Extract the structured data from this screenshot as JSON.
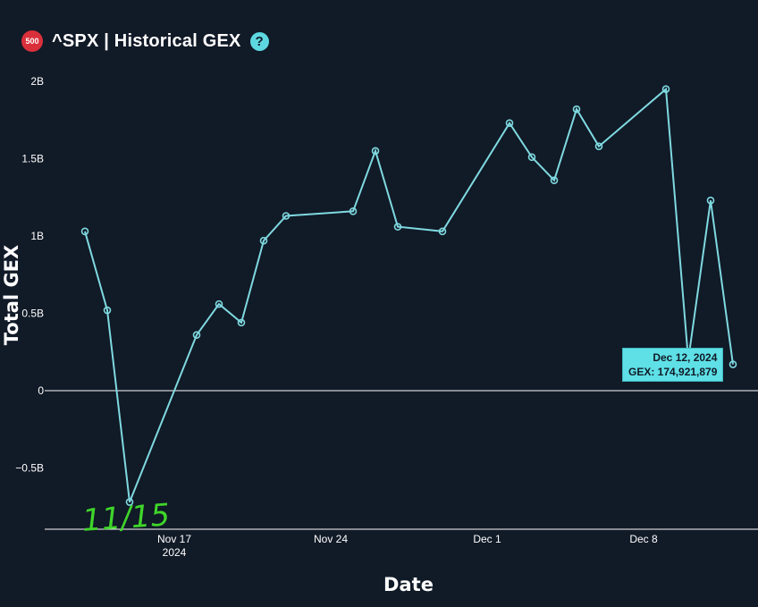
{
  "header": {
    "badge": "500",
    "title": "^SPX | Historical GEX",
    "help_icon": "?"
  },
  "tooltip": {
    "date": "Dec 12, 2024",
    "value": "GEX: 174,921,879"
  },
  "annotation": "11/15",
  "colors": {
    "background": "#111a27",
    "line": "#7fd9e0",
    "tooltip": "#5ee0e6",
    "annotation": "#3fd62a",
    "badge": "#d9303b"
  },
  "chart_data": {
    "type": "line",
    "xlabel": "Date",
    "ylabel": "Total GEX",
    "ylim": [
      -0.9,
      2.05
    ],
    "yunit": "B",
    "yticks": [
      {
        "value": 2,
        "label": "2B"
      },
      {
        "value": 1.5,
        "label": "1.5B"
      },
      {
        "value": 1,
        "label": "1B"
      },
      {
        "value": 0.5,
        "label": "0.5B"
      },
      {
        "value": 0,
        "label": "0"
      },
      {
        "value": -0.5,
        "label": "−0.5B"
      }
    ],
    "xticks": [
      {
        "date": "2024-11-17",
        "label": "Nov 17",
        "label2": "2024"
      },
      {
        "date": "2024-11-24",
        "label": "Nov 24",
        "label2": ""
      },
      {
        "date": "2024-12-01",
        "label": "Dec 1",
        "label2": ""
      },
      {
        "date": "2024-12-08",
        "label": "Dec 8",
        "label2": ""
      }
    ],
    "xlim": [
      "2024-11-12",
      "2024-12-13"
    ],
    "series": [
      {
        "x": [
          "2024-11-13",
          "2024-11-14",
          "2024-11-15",
          "2024-11-18",
          "2024-11-19",
          "2024-11-20",
          "2024-11-21",
          "2024-11-22",
          "2024-11-25",
          "2024-11-26",
          "2024-11-27",
          "2024-11-29",
          "2024-12-02",
          "2024-12-03",
          "2024-12-04",
          "2024-12-05",
          "2024-12-06",
          "2024-12-09",
          "2024-12-10",
          "2024-12-11",
          "2024-12-12"
        ],
        "y": [
          1.03,
          0.52,
          -0.72,
          0.36,
          0.56,
          0.44,
          0.97,
          1.13,
          1.16,
          1.55,
          1.06,
          1.03,
          1.73,
          1.51,
          1.36,
          1.82,
          1.58,
          1.95,
          0.2,
          1.23,
          0.17
        ]
      }
    ]
  }
}
